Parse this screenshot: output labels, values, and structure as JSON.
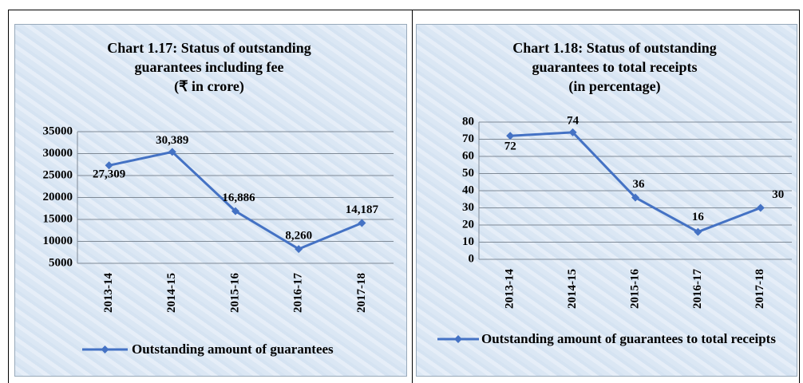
{
  "chart_data": [
    {
      "type": "line",
      "title": "Chart 1.17: Status of outstanding guarantees including fee",
      "subtitle": "(₹ in crore)",
      "categories": [
        "2013-14",
        "2014-15",
        "2015-16",
        "2016-17",
        "2017-18"
      ],
      "series": [
        {
          "name": "Outstanding amount of guarantees",
          "color": "#4472c4",
          "values": [
            27309,
            30389,
            16886,
            8260,
            14187
          ],
          "value_labels": [
            "27,309",
            "30,389",
            "16,886",
            "8,260",
            "14,187"
          ]
        }
      ],
      "ylim": [
        5000,
        35000
      ],
      "yticks": [
        5000,
        10000,
        15000,
        20000,
        25000,
        30000,
        35000
      ],
      "grid": true,
      "legend": "bottom"
    },
    {
      "type": "line",
      "title": "Chart 1.18: Status of outstanding guarantees to total receipts",
      "subtitle": "(in percentage)",
      "categories": [
        "2013-14",
        "2014-15",
        "2015-16",
        "2016-17",
        "2017-18"
      ],
      "series": [
        {
          "name": "Outstanding amount of guarantees to total receipts",
          "color": "#4472c4",
          "values": [
            72,
            74,
            36,
            16,
            30
          ]
        }
      ],
      "ylim": [
        0,
        80
      ],
      "yticks": [
        0,
        10,
        20,
        30,
        40,
        50,
        60,
        70,
        80
      ],
      "grid": true,
      "legend": "bottom"
    }
  ]
}
